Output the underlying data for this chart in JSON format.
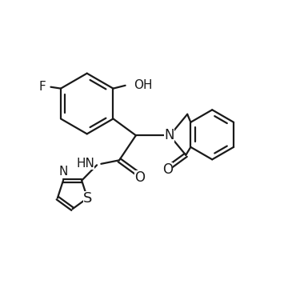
{
  "background_color": "#ffffff",
  "line_color": "#1a1a1a",
  "line_width": 1.6,
  "font_size": 11,
  "figsize": [
    3.65,
    3.65
  ],
  "dpi": 100,
  "xlim": [
    0,
    10
  ],
  "ylim": [
    0,
    10
  ]
}
